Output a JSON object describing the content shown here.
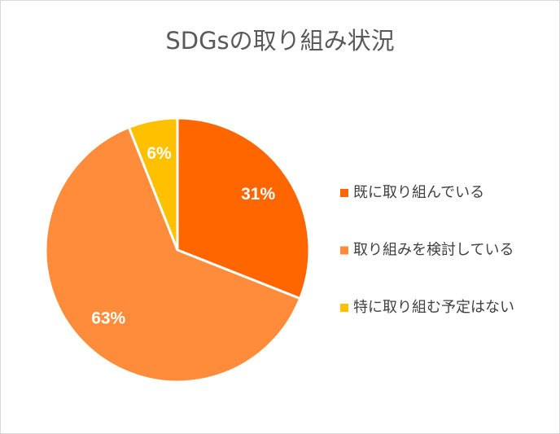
{
  "chart_data": {
    "type": "pie",
    "title": "SDGsの取り組み状況",
    "categories": [
      "既に取り組んでいる",
      "取り組みを検討している",
      "特に取り組む予定はない"
    ],
    "values": [
      31,
      63,
      6
    ],
    "value_labels": [
      "31%",
      "63%",
      "6%"
    ],
    "colors": [
      "#ff6600",
      "#ff8c3a",
      "#ffc000"
    ],
    "legend": "right"
  }
}
